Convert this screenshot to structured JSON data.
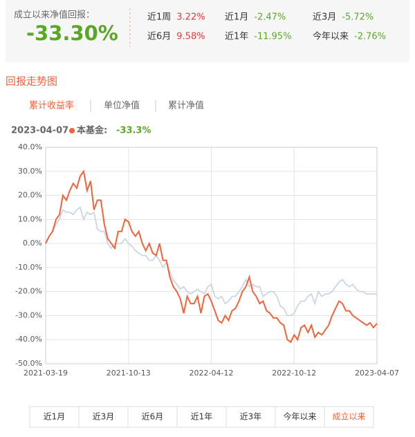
{
  "summary": {
    "label": "成立以来净值回报：",
    "value": "-33.30%",
    "periods": [
      {
        "label": "近1周",
        "value": "3.22%"
      },
      {
        "label": "近1月",
        "value": "-2.47%"
      },
      {
        "label": "近3月",
        "value": "-5.72%"
      },
      {
        "label": "近6月",
        "value": "9.58%"
      },
      {
        "label": "近1年",
        "value": "-11.95%"
      },
      {
        "label": "今年以来",
        "value": "-2.76%"
      }
    ]
  },
  "section_title": "回报走势图",
  "tabs": [
    "累计收益率",
    "单位净值",
    "累计净值"
  ],
  "chart_data": {
    "type": "line",
    "current_label": "-33.3%",
    "categories": [
      "2021-03-19",
      null,
      null,
      null,
      null,
      null,
      null,
      null,
      null,
      null,
      null,
      null,
      null,
      null,
      null,
      null,
      null,
      null,
      null,
      null,
      null,
      null,
      null,
      null,
      "2021-10-13",
      null,
      null,
      null,
      null,
      null,
      null,
      null,
      null,
      null,
      null,
      null,
      null,
      null,
      null,
      null,
      null,
      null,
      null,
      null,
      null,
      null,
      null,
      null,
      "2022-04-12",
      null,
      null,
      null,
      null,
      null,
      null,
      null,
      null,
      null,
      null,
      null,
      null,
      null,
      null,
      null,
      null,
      null,
      null,
      null,
      null,
      null,
      null,
      null,
      "2022-10-12",
      null,
      null,
      null,
      null,
      null,
      null,
      null,
      null,
      null,
      null,
      null,
      null,
      null,
      null,
      null,
      null,
      null,
      null,
      null,
      null,
      null,
      null,
      null,
      "2023-04-07"
    ],
    "series": [
      {
        "name": "本基金:",
        "color": "#f4623a",
        "values": [
          0,
          3,
          5,
          10,
          12,
          20,
          18,
          22,
          25,
          23,
          28,
          30,
          22,
          26,
          14,
          18,
          18,
          8,
          2,
          0,
          -2,
          5,
          5,
          10,
          9,
          5,
          3,
          5,
          0,
          -3,
          0,
          -4,
          -5,
          0,
          -7,
          -7,
          -14,
          -18,
          -20,
          -23,
          -29,
          -22,
          -25,
          -25,
          -22,
          -29,
          -22,
          -21,
          -24,
          -28,
          -32,
          -33,
          -30,
          -32,
          -28,
          -27,
          -24,
          -20,
          -18,
          -14,
          -20,
          -22,
          -25,
          -24,
          -28,
          -29,
          -31,
          -31,
          -33,
          -34,
          -40,
          -41,
          -38,
          -40,
          -35,
          -34,
          -37,
          -34,
          -39,
          -37,
          -38,
          -36,
          -34,
          -30,
          -27,
          -24,
          -25,
          -28,
          -28,
          -30,
          -31,
          -32,
          -33,
          -34,
          -33,
          -35,
          -33.3
        ]
      },
      {
        "color": "#c9d6e6",
        "values": [
          0,
          3,
          5,
          8,
          10,
          14,
          13,
          13,
          12,
          14,
          15,
          10,
          13,
          12,
          13,
          6,
          5,
          5,
          0,
          -2,
          0,
          0,
          0,
          2,
          0,
          -1,
          -3,
          -4,
          -5,
          -5,
          -7,
          -7,
          -5,
          -7,
          -10,
          -8,
          -12,
          -15,
          -17,
          -19,
          -18,
          -20,
          -21,
          -20,
          -19,
          -20,
          -21,
          -18,
          -17,
          -22,
          -23,
          -22,
          -25,
          -24,
          -22,
          -22,
          -20,
          -18,
          -15,
          -18,
          -17,
          -18,
          -18,
          -22,
          -21,
          -20,
          -20,
          -22,
          -26,
          -27,
          -30,
          -30,
          -29,
          -26,
          -24,
          -24,
          -22,
          -21,
          -25,
          -20,
          -22,
          -21,
          -21,
          -20,
          -18,
          -16,
          -15,
          -17,
          -18,
          -17,
          -19,
          -20,
          -20,
          -21,
          -21,
          -21,
          -21
        ]
      }
    ],
    "ylim": [
      -50,
      40
    ],
    "yticks": [
      {
        "value": 40,
        "label": "40.0%"
      },
      {
        "value": 30,
        "label": "30.0%"
      },
      {
        "value": 20,
        "label": "20.0%"
      },
      {
        "value": 10,
        "label": "10.0%"
      },
      {
        "value": 0,
        "label": "0.0%"
      },
      {
        "value": -10,
        "label": "-10.0%"
      },
      {
        "value": -20,
        "label": "-20.0%"
      },
      {
        "value": -30,
        "label": "-30.0%"
      },
      {
        "value": -40,
        "label": "-40.0%"
      },
      {
        "value": -50,
        "label": "-50.0%"
      }
    ],
    "grid": true
  },
  "buttons": [
    "近1月",
    "近3月",
    "近6月",
    "近1年",
    "近3年",
    "今年以来",
    "成立以来"
  ]
}
